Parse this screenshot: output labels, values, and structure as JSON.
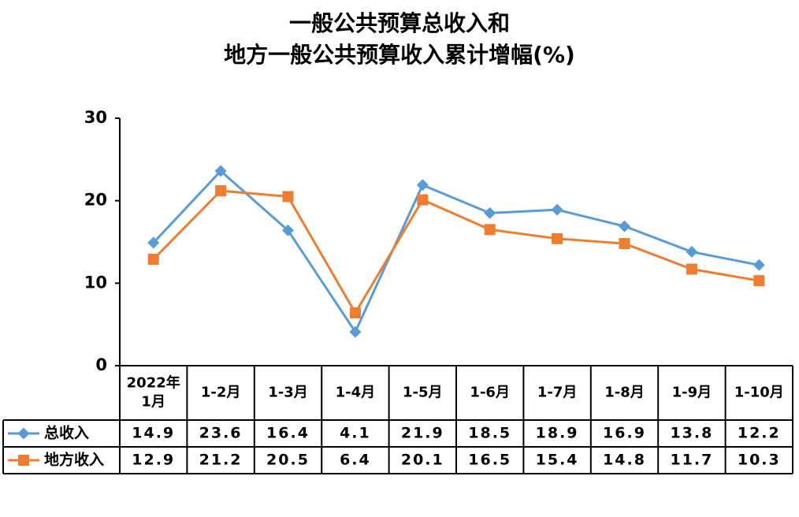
{
  "title_line1": "一般公共预算总收入和",
  "title_line2": "地方一般公共预算收入累计增幅(%)",
  "chart_data": {
    "type": "line",
    "title": "一般公共预算总收入和地方一般公共预算收入累计增幅(%)",
    "categories": [
      [
        "2022年",
        "1月"
      ],
      [
        "1-2月"
      ],
      [
        "1-3月"
      ],
      [
        "1-4月"
      ],
      [
        "1-5月"
      ],
      [
        "1-6月"
      ],
      [
        "1-7月"
      ],
      [
        "1-8月"
      ],
      [
        "1-9月"
      ],
      [
        "1-10月"
      ]
    ],
    "ylim": [
      0,
      30
    ],
    "yticks": [
      0,
      10,
      20,
      30
    ],
    "grid": false,
    "legend": "data-table",
    "series": [
      {
        "name": "总收入",
        "color": "#5B9BD5",
        "marker": "diamond",
        "values": [
          14.9,
          23.6,
          16.4,
          4.1,
          21.9,
          18.5,
          18.9,
          16.9,
          13.8,
          12.2
        ],
        "labels": [
          "14.9",
          "23.6",
          "16.4",
          "4.1",
          "21.9",
          "18.5",
          "18.9",
          "16.9",
          "13.8",
          "12.2"
        ]
      },
      {
        "name": "地方收入",
        "color": "#ED7D31",
        "marker": "square",
        "values": [
          12.9,
          21.2,
          20.5,
          6.4,
          20.1,
          16.5,
          15.4,
          14.8,
          11.7,
          10.3
        ],
        "labels": [
          "12.9",
          "21.2",
          "20.5",
          "6.4",
          "20.1",
          "16.5",
          "15.4",
          "14.8",
          "11.7",
          "10.3"
        ]
      }
    ]
  }
}
